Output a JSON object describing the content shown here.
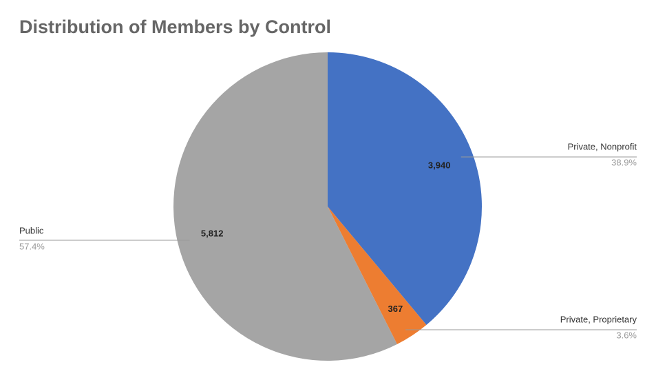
{
  "chart_data": {
    "type": "pie",
    "title": "Distribution of Members by Control",
    "categories": [
      "Private, Nonprofit",
      "Private, Proprietary",
      "Public"
    ],
    "values": [
      3940,
      367,
      5812
    ],
    "value_labels": [
      "3,940",
      "367",
      "5,812"
    ],
    "percents": [
      {
        "value": 38.9,
        "label": "38.9%"
      },
      {
        "value": 3.6,
        "label": "3.6%"
      },
      {
        "value": 57.4,
        "label": "57.4%"
      }
    ],
    "colors": [
      "#4472c4",
      "#ed7d31",
      "#a5a5a5"
    ]
  }
}
